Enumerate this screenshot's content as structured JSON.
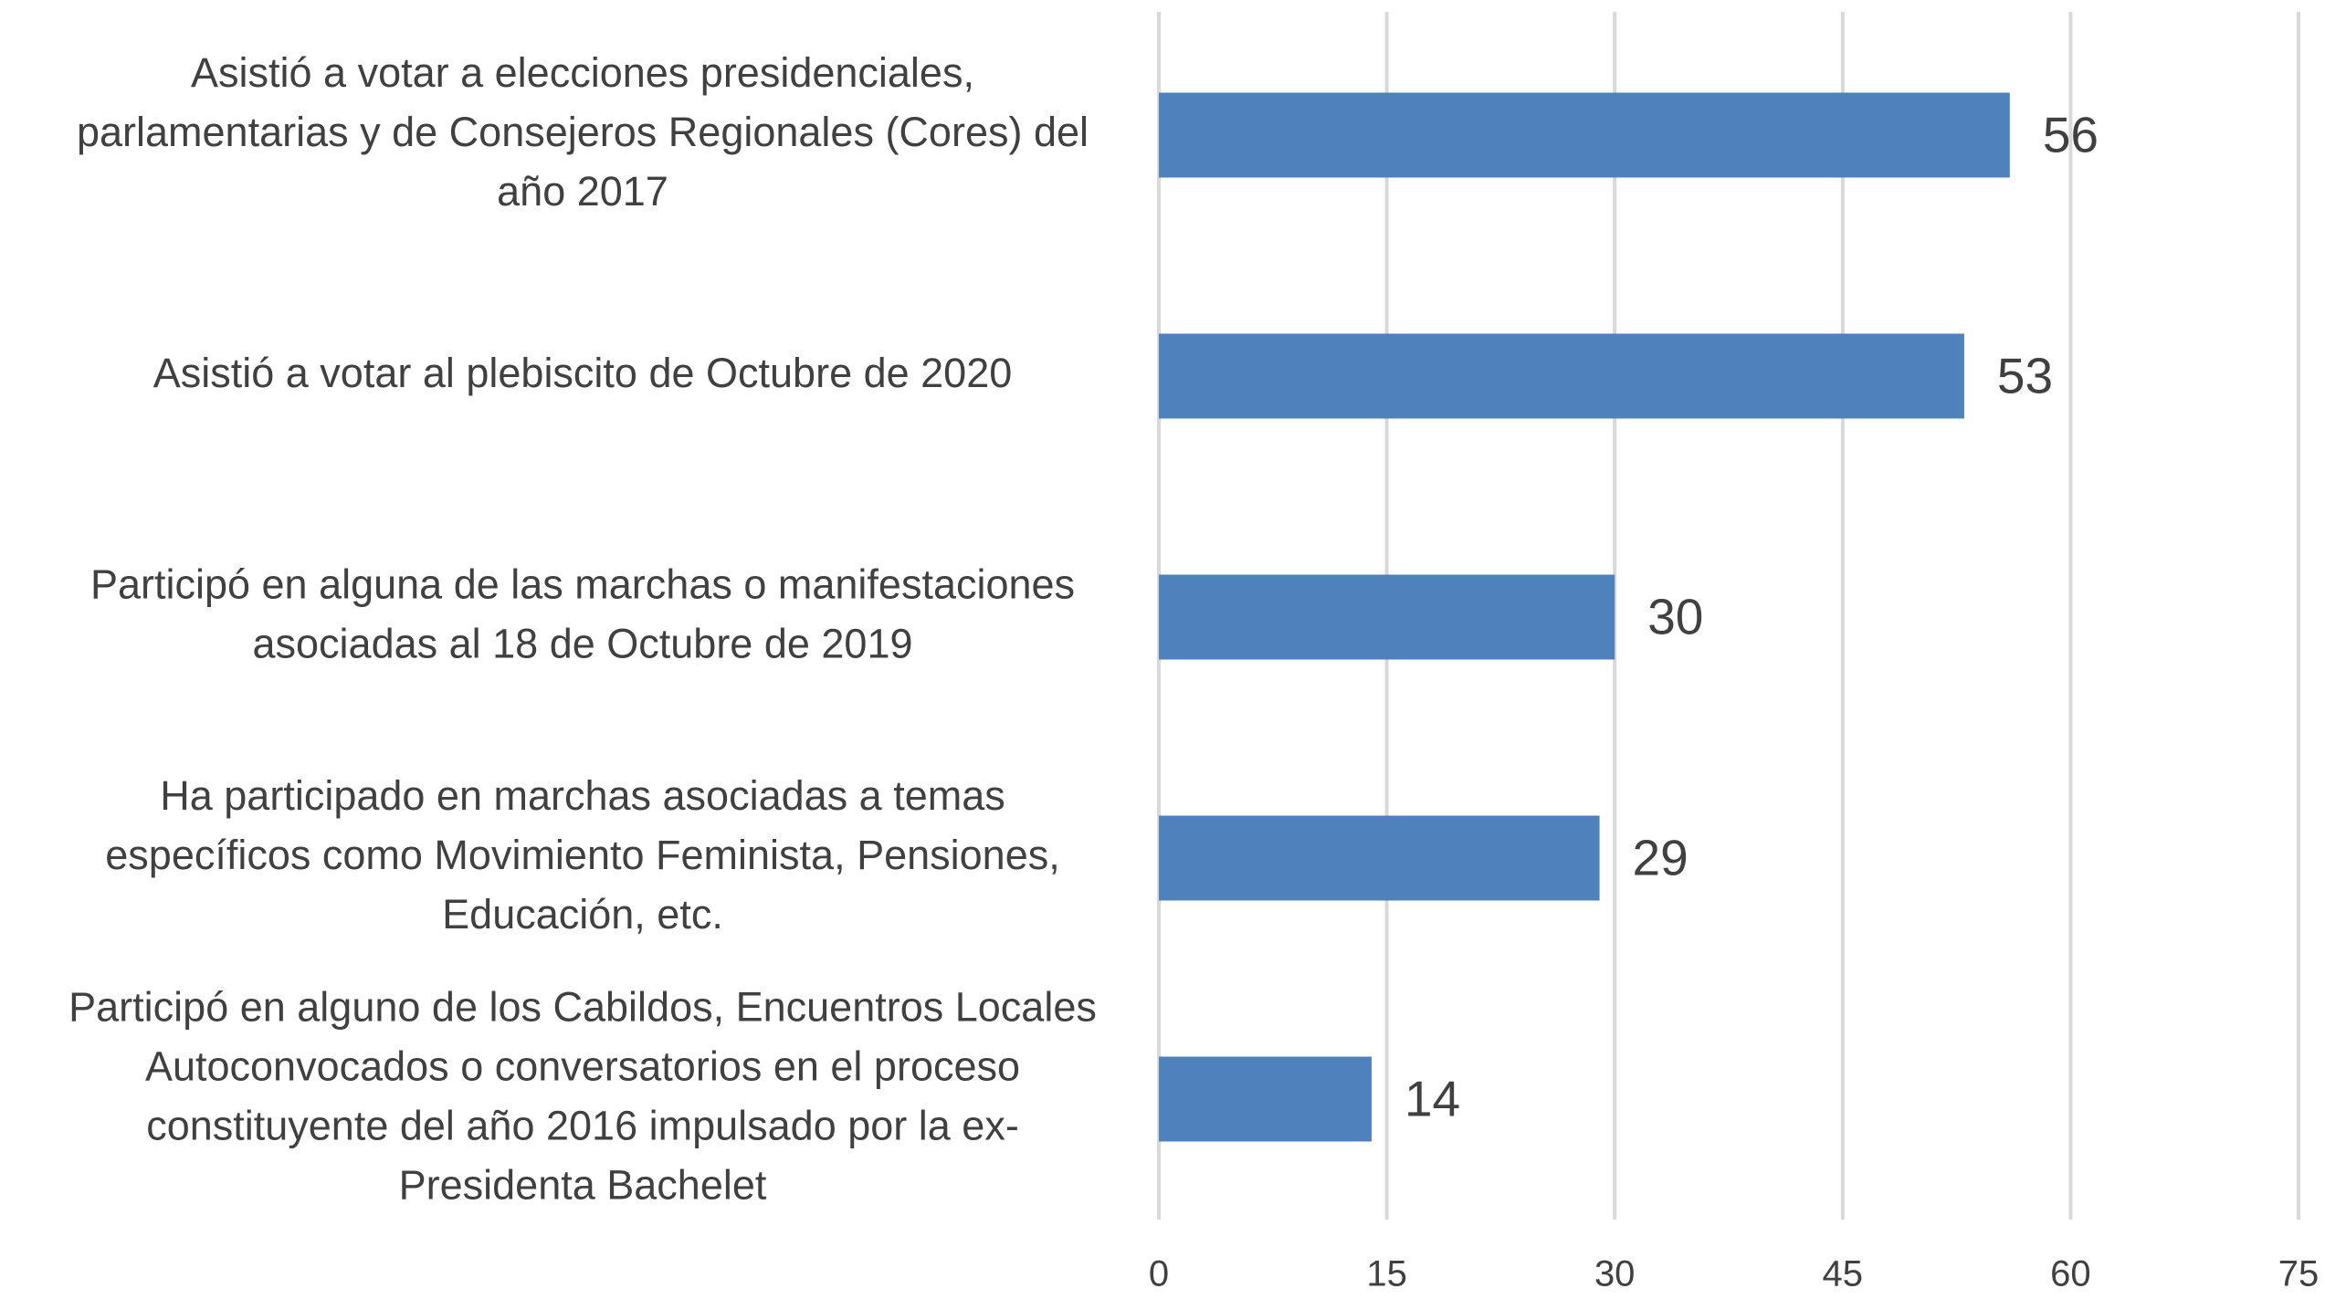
{
  "chart_data": {
    "type": "bar",
    "orientation": "horizontal",
    "categories": [
      [
        "Asistió a votar a elecciones presidenciales,",
        "parlamentarias y de Consejeros Regionales (Cores) del",
        "año 2017"
      ],
      [
        "Asistió a votar al plebiscito de Octubre de 2020"
      ],
      [
        "Participó en alguna de las marchas o manifestaciones",
        "asociadas al 18 de Octubre de 2019"
      ],
      [
        "Ha participado en marchas asociadas a temas",
        "específicos como Movimiento Feminista, Pensiones,",
        "Educación, etc."
      ],
      [
        "Participó en alguno de los Cabildos, Encuentros Locales",
        "Autoconvocados o conversatorios en el proceso",
        "constituyente del año 2016 impulsado por la ex-",
        "Presidenta Bachelet"
      ]
    ],
    "values": [
      56,
      53,
      30,
      29,
      14
    ],
    "color": "#4f81bd",
    "xlim": [
      0,
      75
    ],
    "xticks": [
      0,
      15,
      30,
      45,
      60,
      75
    ],
    "grid": true
  }
}
